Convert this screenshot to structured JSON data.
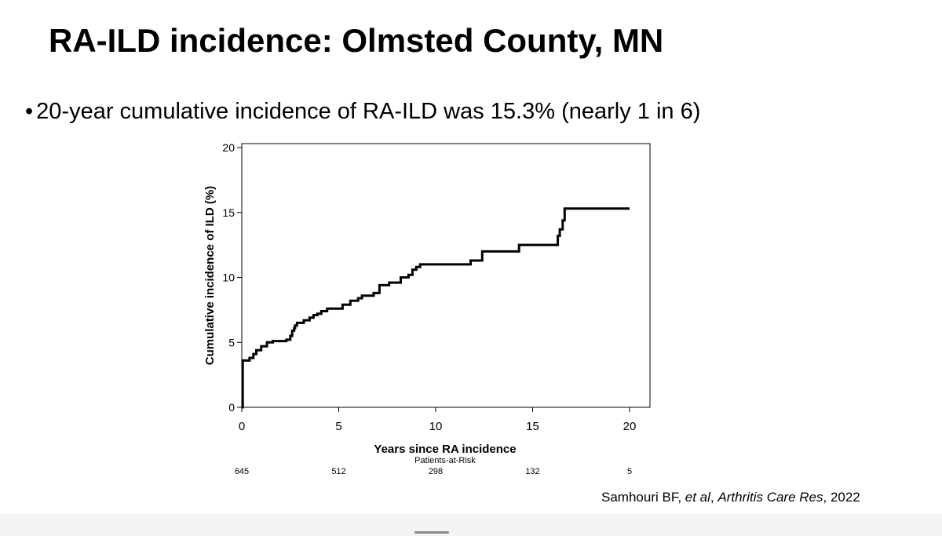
{
  "slide": {
    "title": "RA-ILD incidence: Olmsted County, MN",
    "bullet_marker": "•",
    "bullet_text": "20-year cumulative incidence of RA-ILD was 15.3% (nearly 1 in 6)",
    "citation": {
      "authors": "Samhouri BF, ",
      "etal": "et al",
      "sep1": ", ",
      "journal": "Arthritis Care Res",
      "year": ", 2022"
    }
  },
  "chart_data": {
    "type": "line",
    "step": true,
    "title": "",
    "xlabel": "Years since RA incidence",
    "ylabel": "Cumulative incidence of ILD (%)",
    "xlim": [
      0,
      20
    ],
    "ylim": [
      0,
      20
    ],
    "xticks": [
      0,
      5,
      10,
      15,
      20
    ],
    "yticks": [
      0,
      5,
      10,
      15,
      20
    ],
    "grid": false,
    "series": [
      {
        "name": "Cumulative incidence of ILD",
        "x": [
          0,
          0.05,
          0.4,
          0.6,
          0.75,
          1.0,
          1.3,
          1.6,
          2.0,
          2.3,
          2.5,
          2.6,
          2.7,
          2.75,
          2.85,
          3.2,
          3.5,
          3.7,
          3.9,
          4.1,
          4.4,
          4.9,
          5.2,
          5.6,
          6.0,
          6.2,
          6.8,
          7.1,
          7.6,
          8.2,
          8.6,
          8.8,
          9.0,
          9.2,
          11.0,
          11.8,
          12.4,
          14.3,
          16.2,
          16.3,
          16.4,
          16.55,
          16.65,
          20.0
        ],
        "values": [
          0,
          3.6,
          3.8,
          4.1,
          4.4,
          4.7,
          5.0,
          5.1,
          5.1,
          5.2,
          5.5,
          5.9,
          6.1,
          6.3,
          6.5,
          6.7,
          6.9,
          7.1,
          7.2,
          7.4,
          7.6,
          7.6,
          7.9,
          8.2,
          8.4,
          8.6,
          8.8,
          9.4,
          9.6,
          10.0,
          10.2,
          10.6,
          10.8,
          11.0,
          11.0,
          11.3,
          12.0,
          12.5,
          12.5,
          13.2,
          13.7,
          14.4,
          15.3,
          15.3
        ]
      }
    ],
    "risk_table": {
      "label": "Patients-at-Risk",
      "x": [
        0,
        5,
        10,
        15,
        20
      ],
      "counts": [
        "645",
        "512",
        "298",
        "132",
        "5"
      ]
    }
  }
}
